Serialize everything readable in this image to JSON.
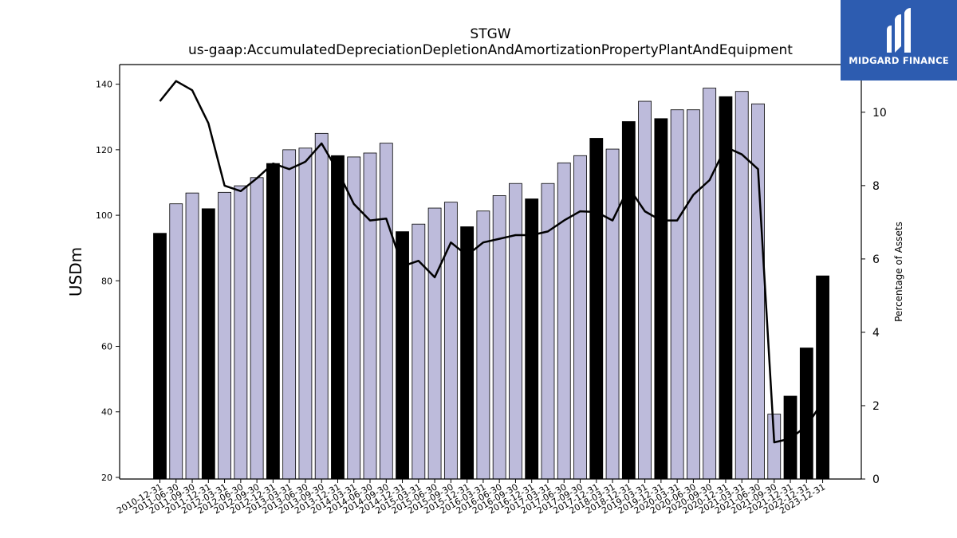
{
  "chart_data": {
    "type": "bar",
    "title": "STGW",
    "subtitle": "us-gaap:AccumulatedDepreciationDepletionAndAmortizationPropertyPlantAndEquipment",
    "ylabel": "USDm",
    "y2label": "Percentage of Assets",
    "ylim": [
      19.5,
      146
    ],
    "y2lim": [
      0,
      11.3
    ],
    "yticks": [
      20,
      40,
      60,
      80,
      100,
      120,
      140
    ],
    "y2ticks": [
      0,
      2,
      4,
      6,
      8,
      10
    ],
    "categories": [
      "2010-12-31",
      "2011-06-30",
      "2011-09-30",
      "2011-12-31",
      "2012-03-31",
      "2012-06-30",
      "2012-09-30",
      "2012-12-31",
      "2013-03-31",
      "2013-06-30",
      "2013-09-30",
      "2013-12-31",
      "2014-03-31",
      "2014-06-30",
      "2014-09-30",
      "2014-12-31",
      "2015-03-31",
      "2015-06-30",
      "2015-09-30",
      "2015-12-31",
      "2016-03-31",
      "2016-06-30",
      "2016-09-30",
      "2016-12-31",
      "2017-03-31",
      "2017-06-30",
      "2017-09-30",
      "2017-12-31",
      "2018-03-31",
      "2018-12-31",
      "2019-03-31",
      "2019-12-31",
      "2020-03-31",
      "2020-06-30",
      "2020-09-30",
      "2020-12-31",
      "2021-03-31",
      "2021-06-30",
      "2021-09-30",
      "2021-12-31",
      "2022-12-31",
      "2023-12-31"
    ],
    "series": [
      {
        "type": "bar",
        "values": [
          94.5,
          103.5,
          106.8,
          102,
          107,
          109,
          111.5,
          115.8,
          120,
          120.5,
          125,
          118.2,
          117.8,
          119,
          122,
          95,
          97.3,
          102.2,
          104,
          96.5,
          101.3,
          106,
          109.7,
          105,
          109.7,
          116,
          118.2,
          123.5,
          120.2,
          128.6,
          134.8,
          129.5,
          132.2,
          132.2,
          138.8,
          136.2,
          137.8,
          134,
          39.3,
          44.8,
          59.5,
          81.5
        ],
        "colors": [
          "#000000",
          "#bdbbdb",
          "#bdbbdb",
          "#000000",
          "#bdbbdb",
          "#bdbbdb",
          "#bdbbdb",
          "#000000",
          "#bdbbdb",
          "#bdbbdb",
          "#bdbbdb",
          "#000000",
          "#bdbbdb",
          "#bdbbdb",
          "#bdbbdb",
          "#000000",
          "#bdbbdb",
          "#bdbbdb",
          "#bdbbdb",
          "#000000",
          "#bdbbdb",
          "#bdbbdb",
          "#bdbbdb",
          "#000000",
          "#bdbbdb",
          "#bdbbdb",
          "#bdbbdb",
          "#000000",
          "#bdbbdb",
          "#000000",
          "#bdbbdb",
          "#000000",
          "#bdbbdb",
          "#bdbbdb",
          "#bdbbdb",
          "#000000",
          "#bdbbdb",
          "#bdbbdb",
          "#bdbbdb",
          "#000000",
          "#000000",
          "#000000"
        ]
      },
      {
        "type": "line",
        "axis": "right",
        "values": [
          10.3,
          10.85,
          10.6,
          9.7,
          8,
          7.85,
          8.2,
          8.6,
          8.45,
          8.65,
          9.15,
          8.4,
          7.5,
          7.05,
          7.1,
          5.8,
          5.95,
          5.5,
          6.45,
          6.1,
          6.45,
          6.55,
          6.65,
          6.65,
          6.75,
          7.05,
          7.3,
          7.28,
          7.05,
          7.95,
          7.3,
          7.05,
          7.05,
          7.75,
          8.15,
          9.05,
          8.85,
          8.45,
          1.0,
          1.1,
          1.45,
          2.1
        ]
      }
    ],
    "colors": {
      "bar_light": "#bdbbdb",
      "bar_dark": "#000000",
      "line": "#000000"
    },
    "grid": false
  },
  "logo": {
    "text": "MIDGARD FINANCE",
    "background": "#2d5cb0"
  }
}
